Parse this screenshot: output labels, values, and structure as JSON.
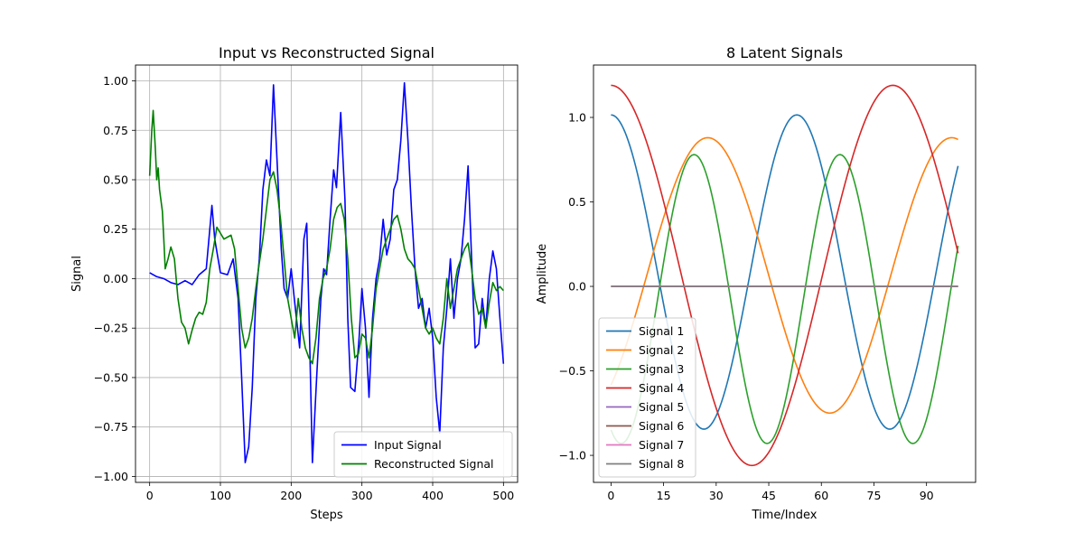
{
  "chart_data": [
    {
      "type": "line",
      "title": "Input vs Reconstructed Signal",
      "xlabel": "Steps",
      "ylabel": "Signal",
      "xlim": [
        -20,
        520
      ],
      "ylim": [
        -1.03,
        1.08
      ],
      "xticks": [
        0,
        100,
        200,
        300,
        400,
        500
      ],
      "yticks": [
        -1.0,
        -0.75,
        -0.5,
        -0.25,
        0.0,
        0.25,
        0.5,
        0.75,
        1.0
      ],
      "ytick_labels": [
        "−1.00",
        "−0.75",
        "−0.50",
        "−0.25",
        "0.00",
        "0.25",
        "0.50",
        "0.75",
        "1.00"
      ],
      "grid": true,
      "legend": "lower-right",
      "series": [
        {
          "name": "Input Signal",
          "color": "#0000ff",
          "points": [
            [
              0,
              0.03
            ],
            [
              10,
              0.01
            ],
            [
              20,
              0.0
            ],
            [
              30,
              -0.02
            ],
            [
              40,
              -0.03
            ],
            [
              50,
              -0.01
            ],
            [
              55,
              -0.02
            ],
            [
              60,
              -0.03
            ],
            [
              70,
              0.02
            ],
            [
              80,
              0.05
            ],
            [
              85,
              0.25
            ],
            [
              88,
              0.37
            ],
            [
              92,
              0.2
            ],
            [
              100,
              0.03
            ],
            [
              110,
              0.02
            ],
            [
              118,
              0.1
            ],
            [
              125,
              -0.1
            ],
            [
              130,
              -0.5
            ],
            [
              135,
              -0.93
            ],
            [
              140,
              -0.85
            ],
            [
              145,
              -0.55
            ],
            [
              150,
              -0.1
            ],
            [
              155,
              0.1
            ],
            [
              160,
              0.45
            ],
            [
              165,
              0.6
            ],
            [
              170,
              0.52
            ],
            [
              175,
              0.98
            ],
            [
              180,
              0.6
            ],
            [
              186,
              0.15
            ],
            [
              190,
              -0.05
            ],
            [
              195,
              -0.1
            ],
            [
              200,
              0.05
            ],
            [
              205,
              -0.12
            ],
            [
              212,
              -0.35
            ],
            [
              218,
              0.2
            ],
            [
              222,
              0.28
            ],
            [
              226,
              -0.3
            ],
            [
              230,
              -0.93
            ],
            [
              236,
              -0.5
            ],
            [
              242,
              -0.1
            ],
            [
              246,
              0.05
            ],
            [
              250,
              0.02
            ],
            [
              255,
              0.3
            ],
            [
              260,
              0.55
            ],
            [
              264,
              0.46
            ],
            [
              270,
              0.84
            ],
            [
              276,
              0.4
            ],
            [
              280,
              -0.2
            ],
            [
              284,
              -0.55
            ],
            [
              290,
              -0.57
            ],
            [
              296,
              -0.3
            ],
            [
              300,
              -0.05
            ],
            [
              305,
              -0.25
            ],
            [
              310,
              -0.6
            ],
            [
              315,
              -0.2
            ],
            [
              320,
              0.0
            ],
            [
              325,
              0.1
            ],
            [
              330,
              0.3
            ],
            [
              335,
              0.12
            ],
            [
              340,
              0.2
            ],
            [
              345,
              0.45
            ],
            [
              350,
              0.5
            ],
            [
              355,
              0.7
            ],
            [
              360,
              0.99
            ],
            [
              365,
              0.7
            ],
            [
              370,
              0.35
            ],
            [
              375,
              0.05
            ],
            [
              380,
              -0.15
            ],
            [
              385,
              -0.1
            ],
            [
              390,
              -0.25
            ],
            [
              395,
              -0.15
            ],
            [
              400,
              -0.3
            ],
            [
              405,
              -0.6
            ],
            [
              410,
              -0.78
            ],
            [
              415,
              -0.35
            ],
            [
              420,
              -0.15
            ],
            [
              425,
              0.1
            ],
            [
              430,
              -0.2
            ],
            [
              435,
              0.0
            ],
            [
              440,
              0.1
            ],
            [
              445,
              0.3
            ],
            [
              450,
              0.57
            ],
            [
              455,
              0.1
            ],
            [
              460,
              -0.35
            ],
            [
              465,
              -0.33
            ],
            [
              470,
              -0.1
            ],
            [
              475,
              -0.25
            ],
            [
              480,
              0.0
            ],
            [
              485,
              0.14
            ],
            [
              490,
              0.05
            ],
            [
              495,
              -0.2
            ],
            [
              500,
              -0.43
            ]
          ]
        },
        {
          "name": "Reconstructed Signal",
          "color": "#008000",
          "points": [
            [
              0,
              0.52
            ],
            [
              3,
              0.75
            ],
            [
              5,
              0.85
            ],
            [
              8,
              0.66
            ],
            [
              10,
              0.5
            ],
            [
              12,
              0.56
            ],
            [
              14,
              0.45
            ],
            [
              18,
              0.34
            ],
            [
              20,
              0.2
            ],
            [
              22,
              0.05
            ],
            [
              26,
              0.1
            ],
            [
              30,
              0.16
            ],
            [
              35,
              0.1
            ],
            [
              40,
              -0.1
            ],
            [
              45,
              -0.22
            ],
            [
              50,
              -0.25
            ],
            [
              55,
              -0.33
            ],
            [
              60,
              -0.26
            ],
            [
              65,
              -0.2
            ],
            [
              70,
              -0.17
            ],
            [
              75,
              -0.18
            ],
            [
              80,
              -0.12
            ],
            [
              85,
              0.05
            ],
            [
              90,
              0.15
            ],
            [
              95,
              0.26
            ],
            [
              100,
              0.23
            ],
            [
              105,
              0.2
            ],
            [
              110,
              0.21
            ],
            [
              115,
              0.22
            ],
            [
              120,
              0.15
            ],
            [
              125,
              -0.05
            ],
            [
              130,
              -0.25
            ],
            [
              135,
              -0.35
            ],
            [
              140,
              -0.3
            ],
            [
              145,
              -0.2
            ],
            [
              150,
              -0.05
            ],
            [
              155,
              0.08
            ],
            [
              160,
              0.2
            ],
            [
              165,
              0.35
            ],
            [
              170,
              0.5
            ],
            [
              175,
              0.54
            ],
            [
              180,
              0.45
            ],
            [
              185,
              0.3
            ],
            [
              190,
              0.1
            ],
            [
              195,
              -0.1
            ],
            [
              200,
              -0.2
            ],
            [
              205,
              -0.3
            ],
            [
              210,
              -0.1
            ],
            [
              215,
              -0.25
            ],
            [
              220,
              -0.35
            ],
            [
              225,
              -0.4
            ],
            [
              230,
              -0.43
            ],
            [
              235,
              -0.3
            ],
            [
              240,
              -0.1
            ],
            [
              245,
              0.0
            ],
            [
              250,
              0.05
            ],
            [
              255,
              0.15
            ],
            [
              260,
              0.3
            ],
            [
              265,
              0.36
            ],
            [
              270,
              0.38
            ],
            [
              275,
              0.3
            ],
            [
              280,
              0.1
            ],
            [
              285,
              -0.2
            ],
            [
              290,
              -0.4
            ],
            [
              295,
              -0.38
            ],
            [
              300,
              -0.28
            ],
            [
              305,
              -0.3
            ],
            [
              310,
              -0.4
            ],
            [
              315,
              -0.25
            ],
            [
              320,
              -0.05
            ],
            [
              325,
              0.05
            ],
            [
              330,
              0.15
            ],
            [
              335,
              0.2
            ],
            [
              340,
              0.25
            ],
            [
              345,
              0.3
            ],
            [
              350,
              0.32
            ],
            [
              355,
              0.25
            ],
            [
              360,
              0.15
            ],
            [
              365,
              0.1
            ],
            [
              370,
              0.08
            ],
            [
              375,
              0.05
            ],
            [
              380,
              -0.05
            ],
            [
              385,
              -0.15
            ],
            [
              390,
              -0.25
            ],
            [
              395,
              -0.28
            ],
            [
              400,
              -0.25
            ],
            [
              405,
              -0.3
            ],
            [
              410,
              -0.33
            ],
            [
              415,
              -0.2
            ],
            [
              420,
              0.0
            ],
            [
              425,
              -0.15
            ],
            [
              430,
              -0.05
            ],
            [
              435,
              0.05
            ],
            [
              440,
              0.1
            ],
            [
              445,
              0.15
            ],
            [
              450,
              0.18
            ],
            [
              455,
              0.05
            ],
            [
              460,
              -0.1
            ],
            [
              465,
              -0.18
            ],
            [
              470,
              -0.15
            ],
            [
              475,
              -0.25
            ],
            [
              480,
              -0.12
            ],
            [
              485,
              -0.02
            ],
            [
              490,
              -0.06
            ],
            [
              495,
              -0.04
            ],
            [
              500,
              -0.06
            ]
          ]
        }
      ]
    },
    {
      "type": "line",
      "title": "8 Latent Signals",
      "xlabel": "Time/Index",
      "ylabel": "Amplitude",
      "xlim": [
        -5,
        104
      ],
      "ylim": [
        -1.16,
        1.31
      ],
      "xticks": [
        0,
        15,
        30,
        45,
        60,
        75,
        90
      ],
      "yticks": [
        -1.0,
        -0.5,
        0.0,
        0.5,
        1.0
      ],
      "ytick_labels": [
        "−1.0",
        "−0.5",
        "0.0",
        "0.5",
        "1.0"
      ],
      "grid": false,
      "legend": "lower-left",
      "series": [
        {
          "name": "Signal 1",
          "color": "#1f77b4",
          "amplitude": 0.93,
          "offset": 0.085,
          "period": 53.0,
          "phase_shift": 0,
          "x_range": [
            0,
            99
          ]
        },
        {
          "name": "Signal 2",
          "color": "#ff7f0e",
          "amplitude": 0.815,
          "offset": 0.065,
          "period": 69.6,
          "phase_shift": 27.6,
          "x_range": [
            0,
            99
          ]
        },
        {
          "name": "Signal 3",
          "color": "#2ca02c",
          "amplitude": 0.855,
          "offset": -0.075,
          "period": 41.6,
          "phase_shift": 23.7,
          "x_range": [
            0,
            99
          ]
        },
        {
          "name": "Signal 4",
          "color": "#d62728",
          "amplitude": 1.125,
          "offset": 0.065,
          "period": 80.4,
          "phase_shift": 0,
          "x_range": [
            0,
            99
          ]
        },
        {
          "name": "Signal 5",
          "color": "#9467bd",
          "amplitude": 0,
          "offset": 0,
          "period": 1,
          "phase_shift": 0,
          "x_range": [
            0,
            99
          ]
        },
        {
          "name": "Signal 6",
          "color": "#8c564b",
          "amplitude": 0,
          "offset": 0,
          "period": 1,
          "phase_shift": 0,
          "x_range": [
            0,
            99
          ]
        },
        {
          "name": "Signal 7",
          "color": "#e377c2",
          "amplitude": 0,
          "offset": 0,
          "period": 1,
          "phase_shift": 0,
          "x_range": [
            0,
            99
          ]
        },
        {
          "name": "Signal 8",
          "color": "#7f7f7f",
          "amplitude": 0,
          "offset": 0,
          "period": 1,
          "phase_shift": 0,
          "x_range": [
            0,
            99
          ]
        }
      ]
    }
  ]
}
